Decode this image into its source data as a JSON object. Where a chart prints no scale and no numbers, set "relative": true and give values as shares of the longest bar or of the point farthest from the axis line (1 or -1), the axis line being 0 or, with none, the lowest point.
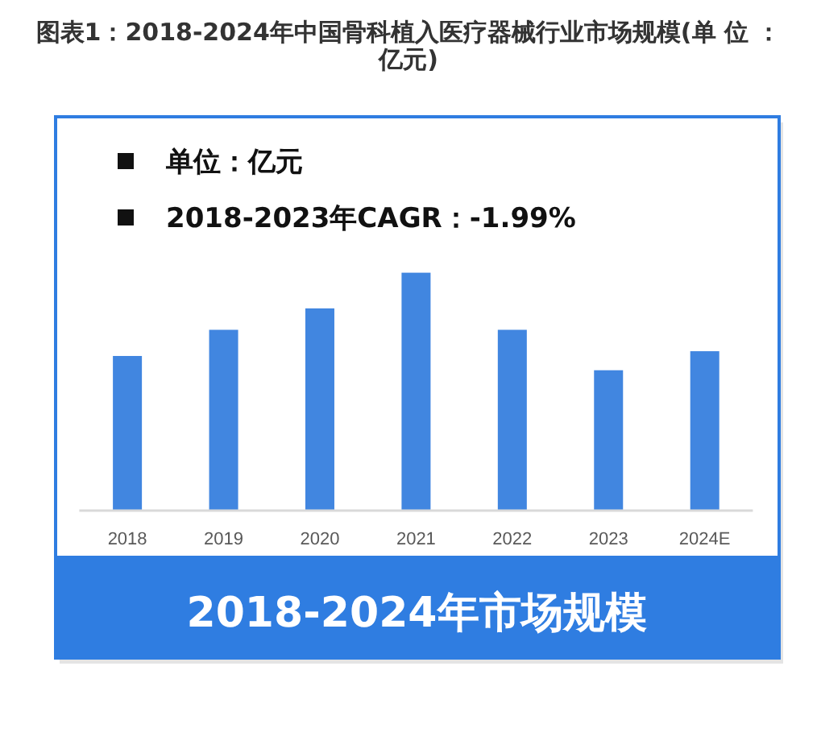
{
  "chart_data": {
    "type": "bar",
    "title": "图表1：2018-2024年中国骨科植入医疗器械行业市场规模(单 位 ：亿元)",
    "subtitle": "2018-2024年市场规模",
    "annotations": [
      "单位：亿元",
      "2018-2023年CAGR：-1.99%"
    ],
    "categories": [
      "2018",
      "2019",
      "2020",
      "2021",
      "2022",
      "2023",
      "2024E"
    ],
    "values": [
      0.65,
      0.76,
      0.85,
      1,
      0.76,
      0.59,
      0.67
    ],
    "color": "#4186e0",
    "relative": true
  }
}
